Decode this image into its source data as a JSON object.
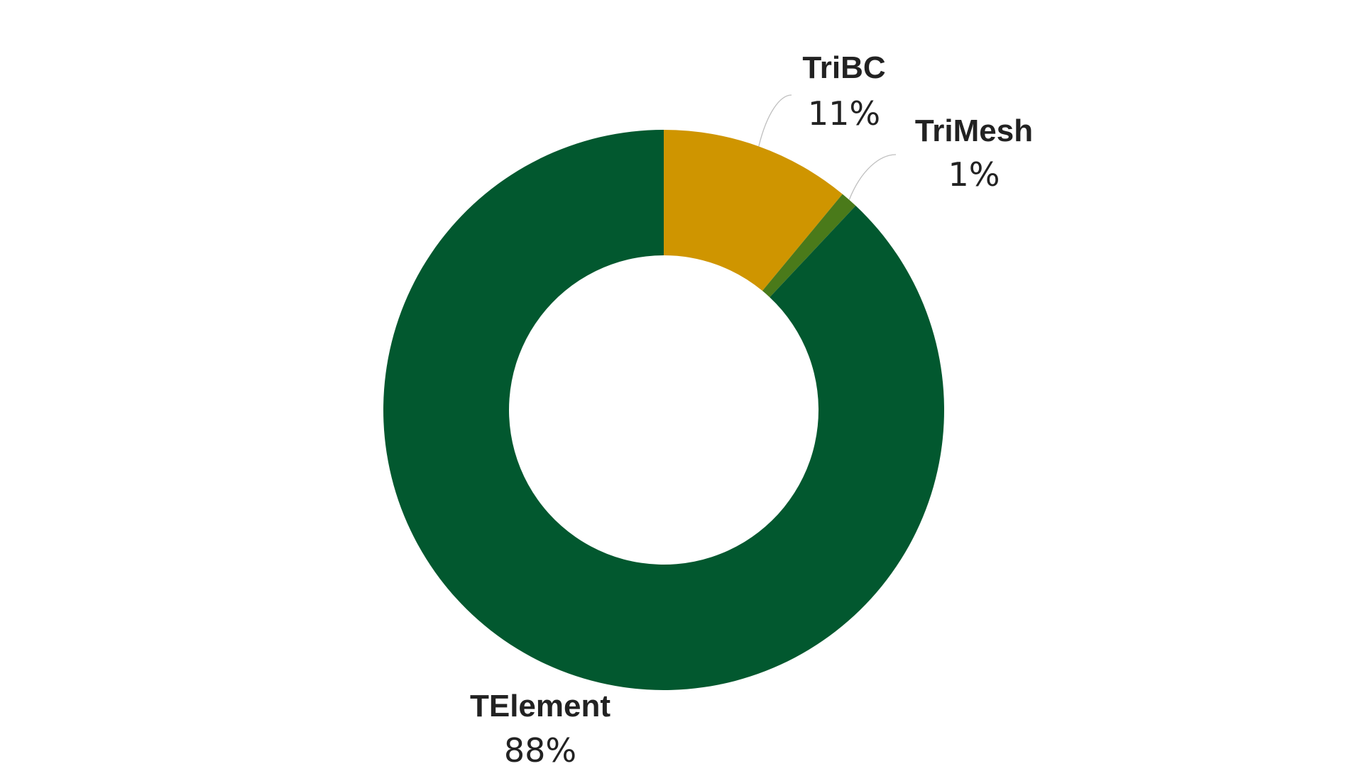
{
  "chart_data": {
    "type": "pie",
    "variant": "donut",
    "slices": [
      {
        "label": "TElement",
        "value": 88,
        "value_label": "88%",
        "color": "#02582F"
      },
      {
        "label": "TriBC",
        "value": 11,
        "value_label": "11%",
        "color": "#CF9500"
      },
      {
        "label": "TriMesh",
        "value": 1,
        "value_label": "1%",
        "color": "#4A7A1A"
      }
    ],
    "start_slice": "TriBC",
    "direction": "clockwise",
    "legend": "none",
    "background": "#FFFFFF"
  }
}
